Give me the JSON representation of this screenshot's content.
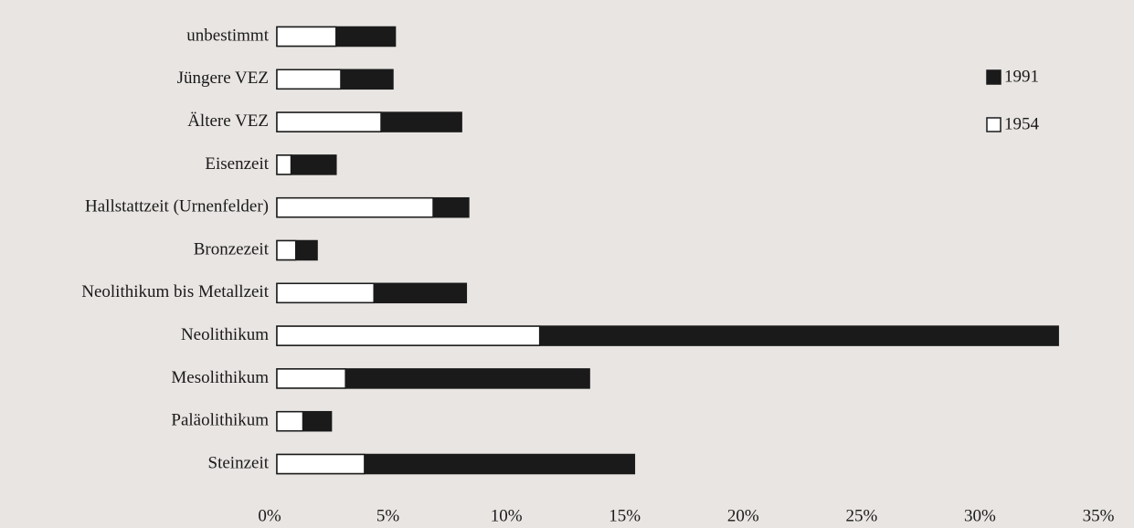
{
  "chart_data": {
    "type": "bar",
    "orientation": "horizontal",
    "overlap": true,
    "categories": [
      "unbestimmt",
      "Jüngere VEZ",
      "Ältere VEZ",
      "Eisenzeit",
      "Hallstattzeit (Urnenfelder)",
      "Bronzezeit",
      "Neolithikum bis Metallzeit",
      "Neolithikum",
      "Mesolithikum",
      "Paläolithikum",
      "Steinzeit"
    ],
    "series": [
      {
        "name": "1991",
        "color": "#1a1a1a",
        "values": [
          5.0,
          4.9,
          7.8,
          2.5,
          8.1,
          1.7,
          8.0,
          33.0,
          13.2,
          2.3,
          15.1
        ]
      },
      {
        "name": "1954",
        "color": "#ffffff",
        "values": [
          2.5,
          2.7,
          4.4,
          0.6,
          6.6,
          0.8,
          4.1,
          11.1,
          2.9,
          1.1,
          3.7
        ]
      }
    ],
    "xlim": [
      0,
      35
    ],
    "xticks": [
      {
        "value": 0,
        "label": "0%"
      },
      {
        "value": 5,
        "label": "5%"
      },
      {
        "value": 10,
        "label": "10%"
      },
      {
        "value": 15,
        "label": "15%"
      },
      {
        "value": 20,
        "label": "20%"
      },
      {
        "value": 25,
        "label": "25%"
      },
      {
        "value": 30,
        "label": "30%"
      },
      {
        "value": 35,
        "label": "35%"
      }
    ],
    "legend": "upper right"
  }
}
